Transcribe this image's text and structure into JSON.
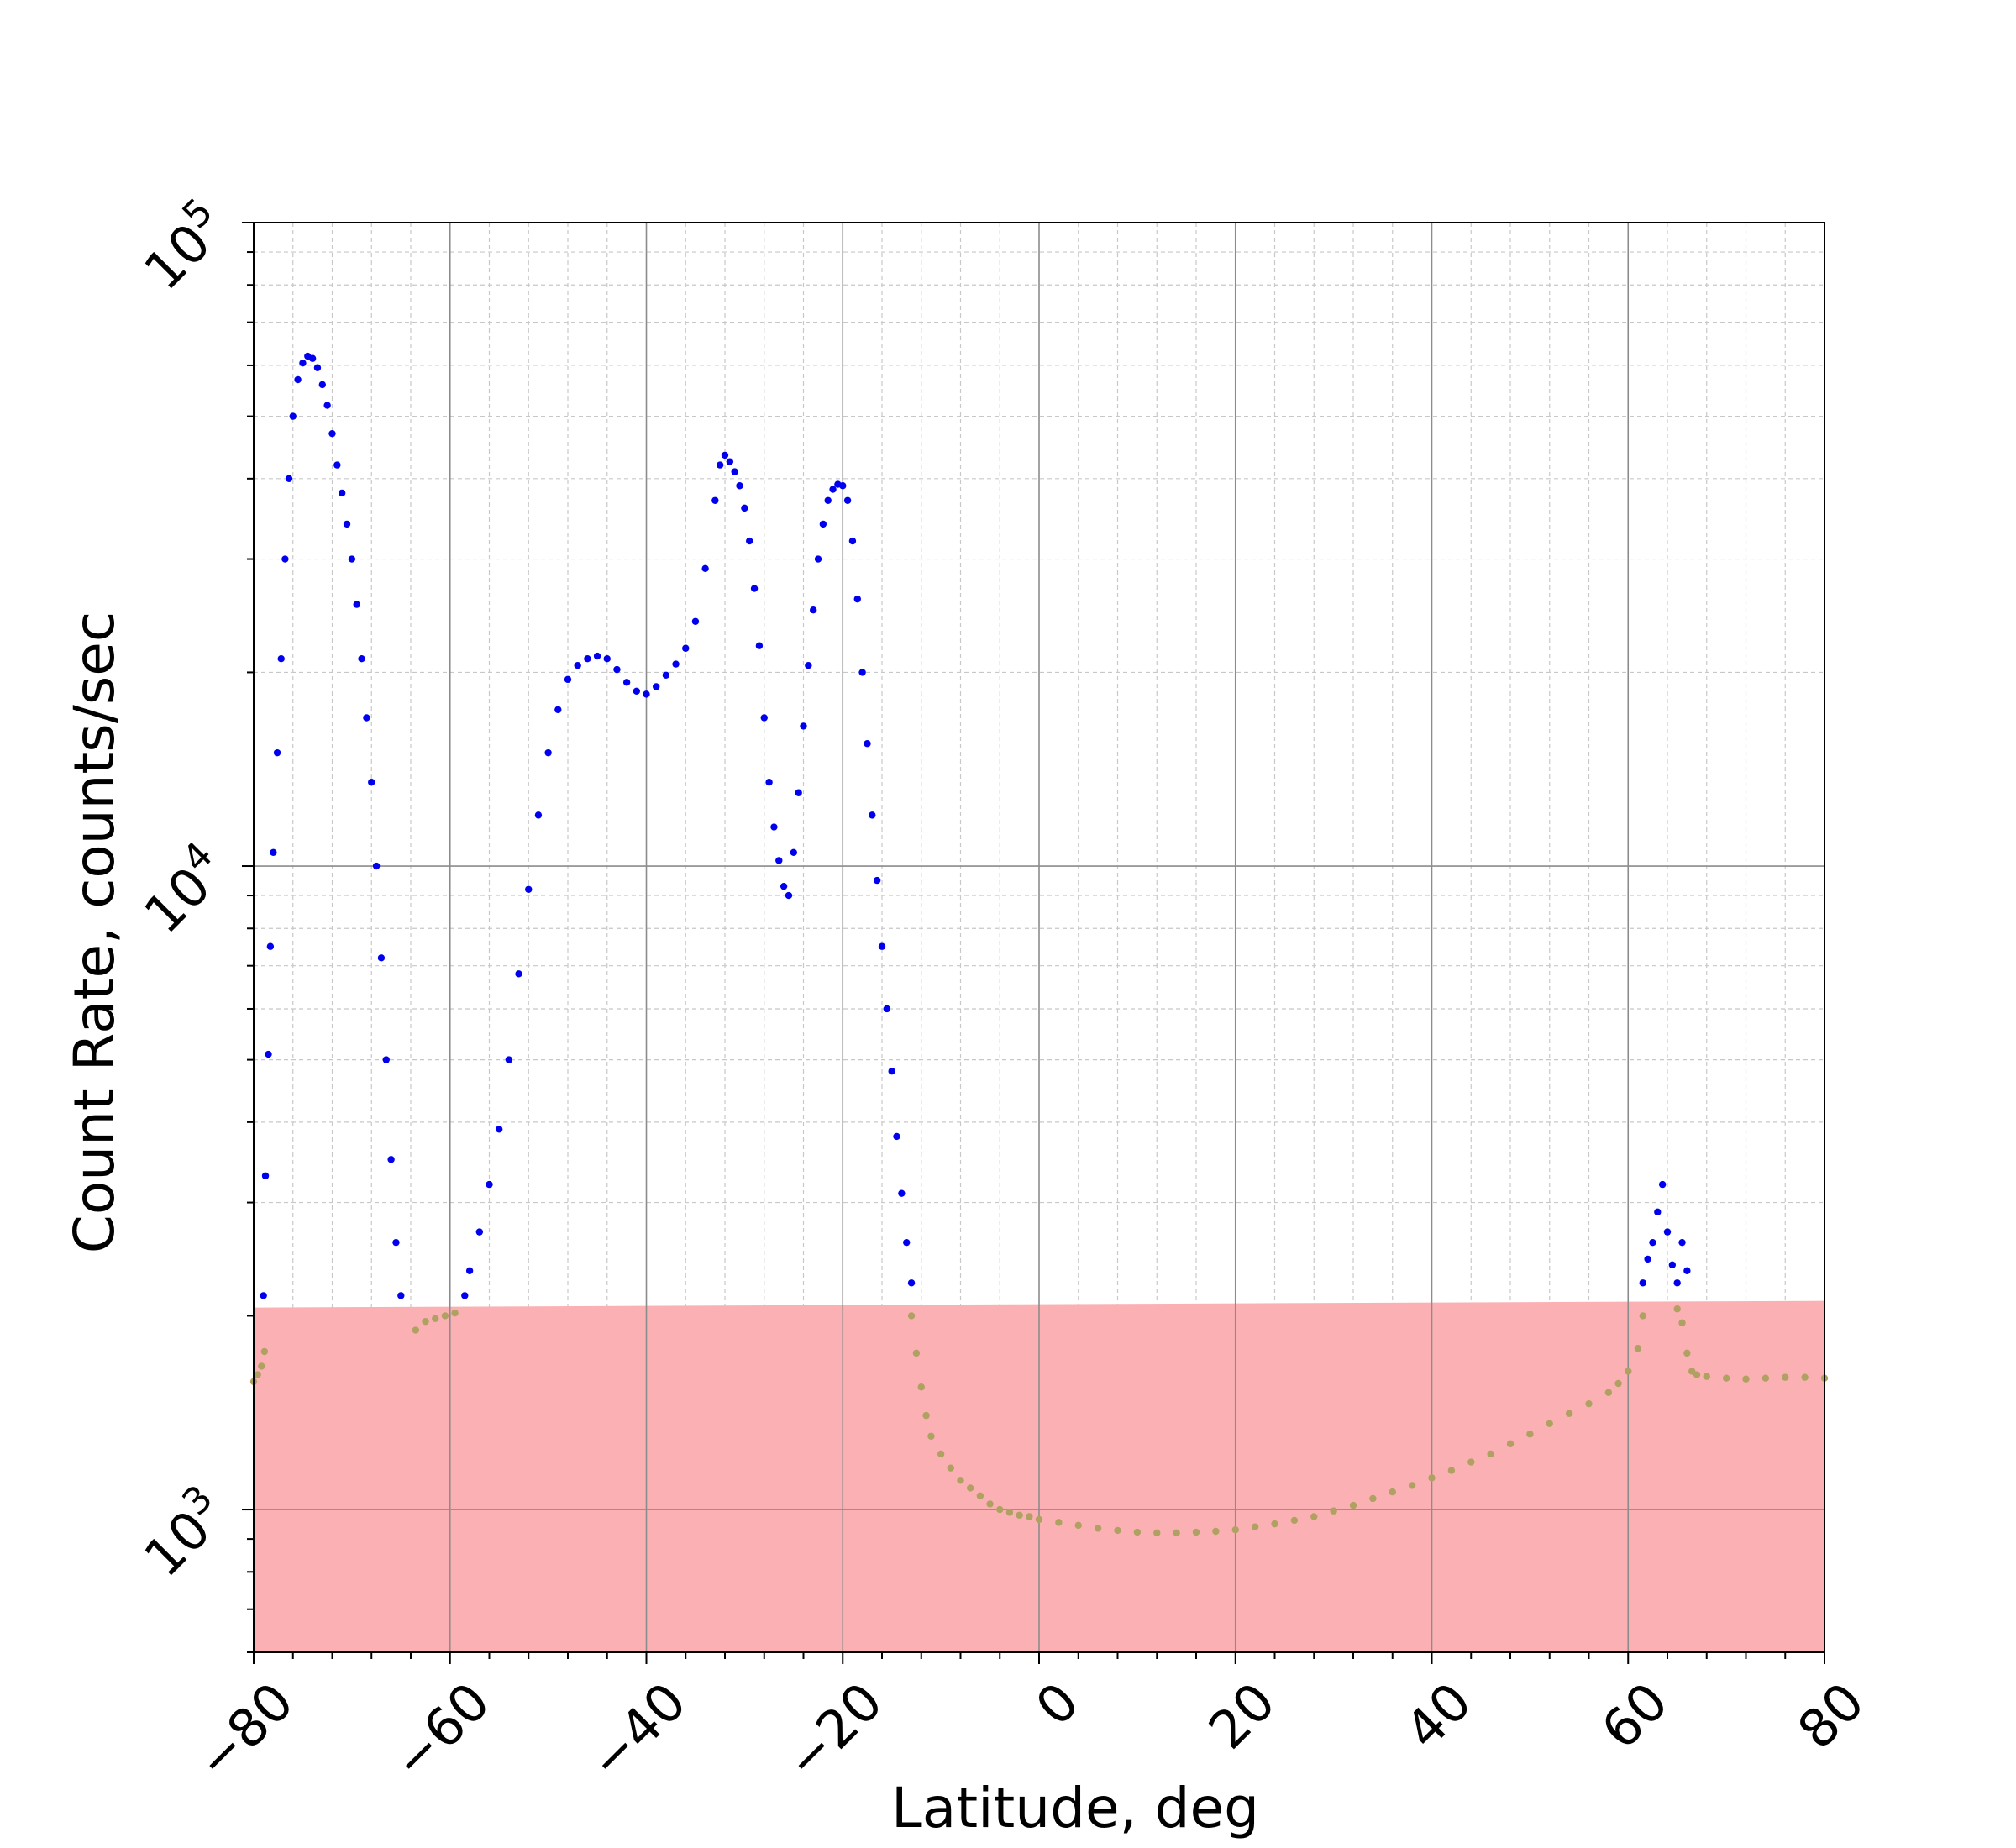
{
  "chart_data": {
    "type": "scatter",
    "xlabel": "Latitude, deg",
    "ylabel": "Count Rate, counts/sec",
    "xlim": [
      -80,
      80
    ],
    "ylim": [
      600,
      100000
    ],
    "yscale": "log",
    "grid": true,
    "x_ticks": [
      "−80",
      "−60",
      "−40",
      "−20",
      "0",
      "20",
      "40",
      "60",
      "80"
    ],
    "y_ticks": [
      {
        "base": "10",
        "exp": "3"
      },
      {
        "base": "10",
        "exp": "4"
      },
      {
        "base": "10",
        "exp": "5"
      }
    ],
    "threshold": {
      "x": [
        -80,
        80
      ],
      "y": [
        2060,
        2110
      ],
      "color": "#fbb0b3"
    },
    "series": [
      {
        "color": "#0000ee",
        "points": [
          [
            -79.0,
            2150
          ],
          [
            -78.8,
            3300
          ],
          [
            -78.5,
            5100
          ],
          [
            -78.3,
            7500
          ],
          [
            -78.0,
            10500
          ],
          [
            -77.6,
            15000
          ],
          [
            -77.2,
            21000
          ],
          [
            -76.8,
            30000
          ],
          [
            -76.4,
            40000
          ],
          [
            -76.0,
            50000
          ],
          [
            -75.5,
            57000
          ],
          [
            -75.0,
            60500
          ],
          [
            -74.5,
            62000
          ],
          [
            -74.0,
            61500
          ],
          [
            -73.5,
            59500
          ],
          [
            -73.0,
            56000
          ],
          [
            -72.5,
            52000
          ],
          [
            -72.0,
            47000
          ],
          [
            -71.5,
            42000
          ],
          [
            -71.0,
            38000
          ],
          [
            -70.5,
            34000
          ],
          [
            -70.0,
            30000
          ],
          [
            -69.5,
            25500
          ],
          [
            -69.0,
            21000
          ],
          [
            -68.5,
            17000
          ],
          [
            -68.0,
            13500
          ],
          [
            -67.5,
            10000
          ],
          [
            -67.0,
            7200
          ],
          [
            -66.5,
            5000
          ],
          [
            -66.0,
            3500
          ],
          [
            -65.5,
            2600
          ],
          [
            -65.0,
            2150
          ],
          [
            -58.5,
            2150
          ],
          [
            -58.0,
            2350
          ],
          [
            -57.0,
            2700
          ],
          [
            -56.0,
            3200
          ],
          [
            -55.0,
            3900
          ],
          [
            -54.0,
            5000
          ],
          [
            -53.0,
            6800
          ],
          [
            -52.0,
            9200
          ],
          [
            -51.0,
            12000
          ],
          [
            -50.0,
            15000
          ],
          [
            -49.0,
            17500
          ],
          [
            -48.0,
            19500
          ],
          [
            -47.0,
            20500
          ],
          [
            -46.0,
            21000
          ],
          [
            -45.0,
            21200
          ],
          [
            -44.0,
            21000
          ],
          [
            -43.0,
            20200
          ],
          [
            -42.0,
            19300
          ],
          [
            -41.0,
            18700
          ],
          [
            -40.0,
            18500
          ],
          [
            -39.0,
            19000
          ],
          [
            -38.0,
            19800
          ],
          [
            -37.0,
            20600
          ],
          [
            -36.0,
            21800
          ],
          [
            -35.0,
            24000
          ],
          [
            -34.0,
            29000
          ],
          [
            -33.0,
            37000
          ],
          [
            -32.5,
            42000
          ],
          [
            -32.0,
            43500
          ],
          [
            -31.5,
            42500
          ],
          [
            -31.0,
            41000
          ],
          [
            -30.5,
            39000
          ],
          [
            -30.0,
            36000
          ],
          [
            -29.5,
            32000
          ],
          [
            -29.0,
            27000
          ],
          [
            -28.5,
            22000
          ],
          [
            -28.0,
            17000
          ],
          [
            -27.5,
            13500
          ],
          [
            -27.0,
            11500
          ],
          [
            -26.5,
            10200
          ],
          [
            -26.0,
            9300
          ],
          [
            -25.5,
            9000
          ],
          [
            -25.0,
            10500
          ],
          [
            -24.5,
            13000
          ],
          [
            -24.0,
            16500
          ],
          [
            -23.5,
            20500
          ],
          [
            -23.0,
            25000
          ],
          [
            -22.5,
            30000
          ],
          [
            -22.0,
            34000
          ],
          [
            -21.5,
            37000
          ],
          [
            -21.0,
            38500
          ],
          [
            -20.5,
            39200
          ],
          [
            -20.0,
            39000
          ],
          [
            -19.5,
            37000
          ],
          [
            -19.0,
            32000
          ],
          [
            -18.5,
            26000
          ],
          [
            -18.0,
            20000
          ],
          [
            -17.5,
            15500
          ],
          [
            -17.0,
            12000
          ],
          [
            -16.5,
            9500
          ],
          [
            -16.0,
            7500
          ],
          [
            -15.5,
            6000
          ],
          [
            -15.0,
            4800
          ],
          [
            -14.5,
            3800
          ],
          [
            -14.0,
            3100
          ],
          [
            -13.5,
            2600
          ],
          [
            -13.0,
            2250
          ],
          [
            61.5,
            2250
          ],
          [
            62.0,
            2450
          ],
          [
            62.5,
            2600
          ],
          [
            63.0,
            2900
          ],
          [
            63.5,
            3200
          ],
          [
            64.0,
            2700
          ],
          [
            64.5,
            2400
          ],
          [
            65.0,
            2250
          ],
          [
            65.5,
            2600
          ],
          [
            66.0,
            2350
          ]
        ]
      },
      {
        "color": "#afa162",
        "points": [
          [
            -80.0,
            1580
          ],
          [
            -79.6,
            1620
          ],
          [
            -79.2,
            1670
          ],
          [
            -78.9,
            1760
          ],
          [
            -63.5,
            1900
          ],
          [
            -62.5,
            1960
          ],
          [
            -61.5,
            1980
          ],
          [
            -60.5,
            2000
          ],
          [
            -59.5,
            2020
          ],
          [
            -13.0,
            2000
          ],
          [
            -12.5,
            1750
          ],
          [
            -12.0,
            1550
          ],
          [
            -11.5,
            1400
          ],
          [
            -11.0,
            1300
          ],
          [
            -10.0,
            1220
          ],
          [
            -9.0,
            1160
          ],
          [
            -8.0,
            1110
          ],
          [
            -7.0,
            1080
          ],
          [
            -6.0,
            1050
          ],
          [
            -5.0,
            1020
          ],
          [
            -4.0,
            1000
          ],
          [
            -3.0,
            990
          ],
          [
            -2.0,
            980
          ],
          [
            -1.0,
            975
          ],
          [
            0.0,
            965
          ],
          [
            2.0,
            955
          ],
          [
            4.0,
            945
          ],
          [
            6.0,
            935
          ],
          [
            8.0,
            928
          ],
          [
            10.0,
            922
          ],
          [
            12.0,
            920
          ],
          [
            14.0,
            920
          ],
          [
            16.0,
            922
          ],
          [
            18.0,
            925
          ],
          [
            20.0,
            930
          ],
          [
            22.0,
            940
          ],
          [
            24.0,
            950
          ],
          [
            26.0,
            962
          ],
          [
            28.0,
            975
          ],
          [
            30.0,
            995
          ],
          [
            32.0,
            1015
          ],
          [
            34.0,
            1040
          ],
          [
            36.0,
            1065
          ],
          [
            38.0,
            1090
          ],
          [
            40.0,
            1120
          ],
          [
            42.0,
            1150
          ],
          [
            44.0,
            1185
          ],
          [
            46.0,
            1220
          ],
          [
            48.0,
            1265
          ],
          [
            50.0,
            1310
          ],
          [
            52.0,
            1360
          ],
          [
            54.0,
            1410
          ],
          [
            56.0,
            1460
          ],
          [
            58.0,
            1520
          ],
          [
            59.0,
            1570
          ],
          [
            60.0,
            1640
          ],
          [
            61.0,
            1780
          ],
          [
            61.5,
            2000
          ],
          [
            65.0,
            2050
          ],
          [
            65.5,
            1950
          ],
          [
            66.0,
            1750
          ],
          [
            66.5,
            1640
          ],
          [
            67.0,
            1620
          ],
          [
            68.0,
            1610
          ],
          [
            70.0,
            1600
          ],
          [
            72.0,
            1595
          ],
          [
            74.0,
            1600
          ],
          [
            76.0,
            1605
          ],
          [
            78.0,
            1605
          ],
          [
            80.0,
            1600
          ]
        ]
      }
    ]
  }
}
